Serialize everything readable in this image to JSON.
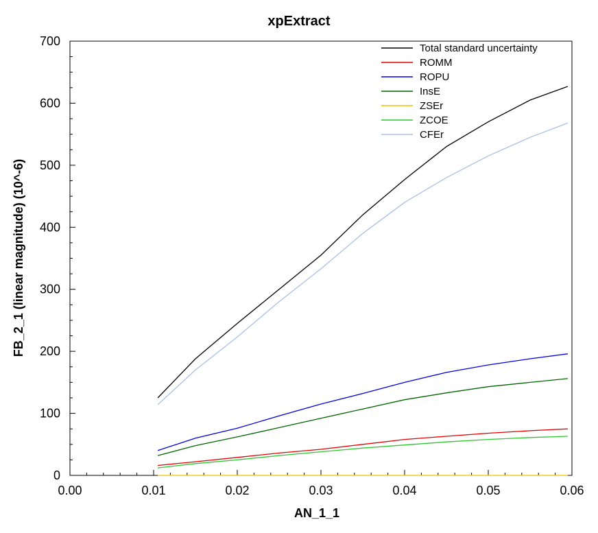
{
  "chart_data": {
    "type": "line",
    "title": "xpExtract",
    "xlabel": "AN_1_1",
    "ylabel": "FB_2_1 (linear magnitude) (10^-6)",
    "xlim": [
      0.0,
      0.06
    ],
    "ylim": [
      0,
      700
    ],
    "xticks": [
      0.0,
      0.01,
      0.02,
      0.03,
      0.04,
      0.05,
      0.06
    ],
    "xtick_labels": [
      "0.00",
      "0.01",
      "0.02",
      "0.03",
      "0.04",
      "0.05",
      "0.06"
    ],
    "yticks": [
      0,
      100,
      200,
      300,
      400,
      500,
      600,
      700
    ],
    "ytick_labels": [
      "0",
      "100",
      "200",
      "300",
      "400",
      "500",
      "600",
      "700"
    ],
    "legend_position": "top-right",
    "grid": false,
    "x": [
      0.0105,
      0.015,
      0.02,
      0.025,
      0.03,
      0.035,
      0.04,
      0.045,
      0.05,
      0.055,
      0.0595
    ],
    "series": [
      {
        "name": "Total standard uncertainty",
        "color": "#000000",
        "values": [
          125,
          188,
          245,
          300,
          355,
          420,
          477,
          530,
          570,
          605,
          627
        ]
      },
      {
        "name": "ROMM",
        "color": "#e00000",
        "values": [
          16,
          22,
          29,
          36,
          42,
          50,
          58,
          63,
          68,
          72,
          75
        ]
      },
      {
        "name": "ROPU",
        "color": "#0000e0",
        "values": [
          40,
          60,
          76,
          96,
          115,
          132,
          150,
          166,
          178,
          188,
          196
        ]
      },
      {
        "name": "InsE",
        "color": "#006400",
        "values": [
          32,
          48,
          62,
          77,
          92,
          107,
          122,
          133,
          143,
          150,
          156
        ]
      },
      {
        "name": "ZSEr",
        "color": "#f2c200",
        "values": [
          0,
          0,
          0,
          0,
          0,
          0,
          0,
          0,
          0,
          0,
          0
        ]
      },
      {
        "name": "ZCOE",
        "color": "#2ec52e",
        "values": [
          12,
          19,
          25,
          32,
          38,
          44,
          49,
          54,
          58,
          61,
          63
        ]
      },
      {
        "name": "CFEr",
        "color": "#a9c0e6",
        "values": [
          114,
          170,
          223,
          280,
          333,
          390,
          440,
          480,
          515,
          545,
          568
        ]
      }
    ]
  }
}
